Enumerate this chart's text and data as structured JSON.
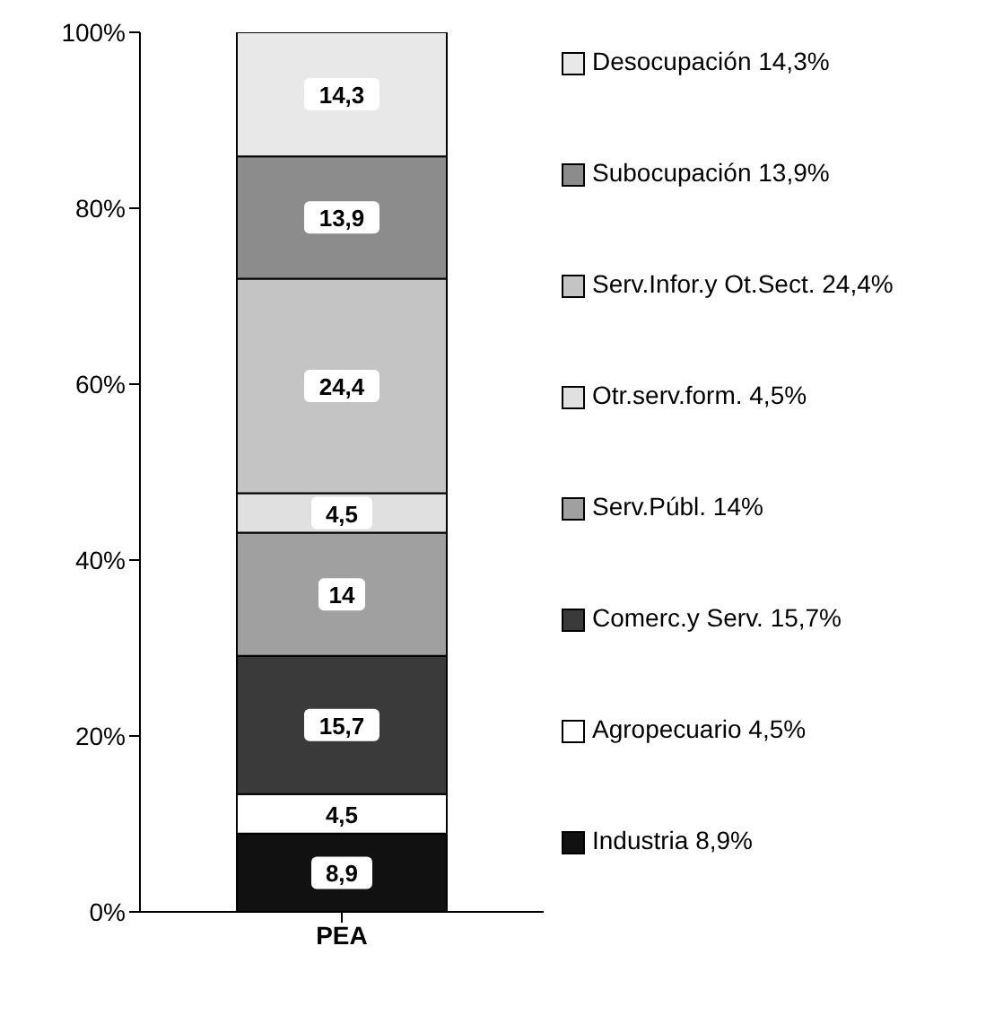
{
  "chart_data": {
    "type": "bar",
    "stacked": true,
    "categories": [
      "PEA"
    ],
    "ylim": [
      0,
      100
    ],
    "yticks": [
      {
        "value": 0,
        "label": "0%"
      },
      {
        "value": 20,
        "label": "20%"
      },
      {
        "value": 40,
        "label": "40%"
      },
      {
        "value": 60,
        "label": "60%"
      },
      {
        "value": 80,
        "label": "80%"
      },
      {
        "value": 100,
        "label": "100%"
      }
    ],
    "legend": "right",
    "series": [
      {
        "name": "Industria 8,9%",
        "color": "#111111",
        "values": [
          8.9
        ],
        "value_labels": [
          "8,9"
        ]
      },
      {
        "name": "Agropecuario 4,5%",
        "color": "#ffffff",
        "values": [
          4.5
        ],
        "value_labels": [
          "4,5"
        ]
      },
      {
        "name": "Comerc.y Serv. 15,7%",
        "color": "#3a3a3a",
        "values": [
          15.7
        ],
        "value_labels": [
          "15,7"
        ]
      },
      {
        "name": "Serv.Públ. 14%",
        "color": "#a0a0a0",
        "values": [
          14
        ],
        "value_labels": [
          "14"
        ]
      },
      {
        "name": "Otr.serv.form. 4,5%",
        "color": "#e0e0e0",
        "values": [
          4.5
        ],
        "value_labels": [
          "4,5"
        ]
      },
      {
        "name": "Serv.Infor.y Ot.Sect. 24,4%",
        "color": "#c4c4c4",
        "values": [
          24.4
        ],
        "value_labels": [
          "24,4"
        ]
      },
      {
        "name": "Subocupación 13,9%",
        "color": "#8c8c8c",
        "values": [
          13.9
        ],
        "value_labels": [
          "13,9"
        ]
      },
      {
        "name": "Desocupación 14,3%",
        "color": "#e8e8e8",
        "values": [
          14.3
        ],
        "value_labels": [
          "14,3"
        ]
      }
    ]
  }
}
